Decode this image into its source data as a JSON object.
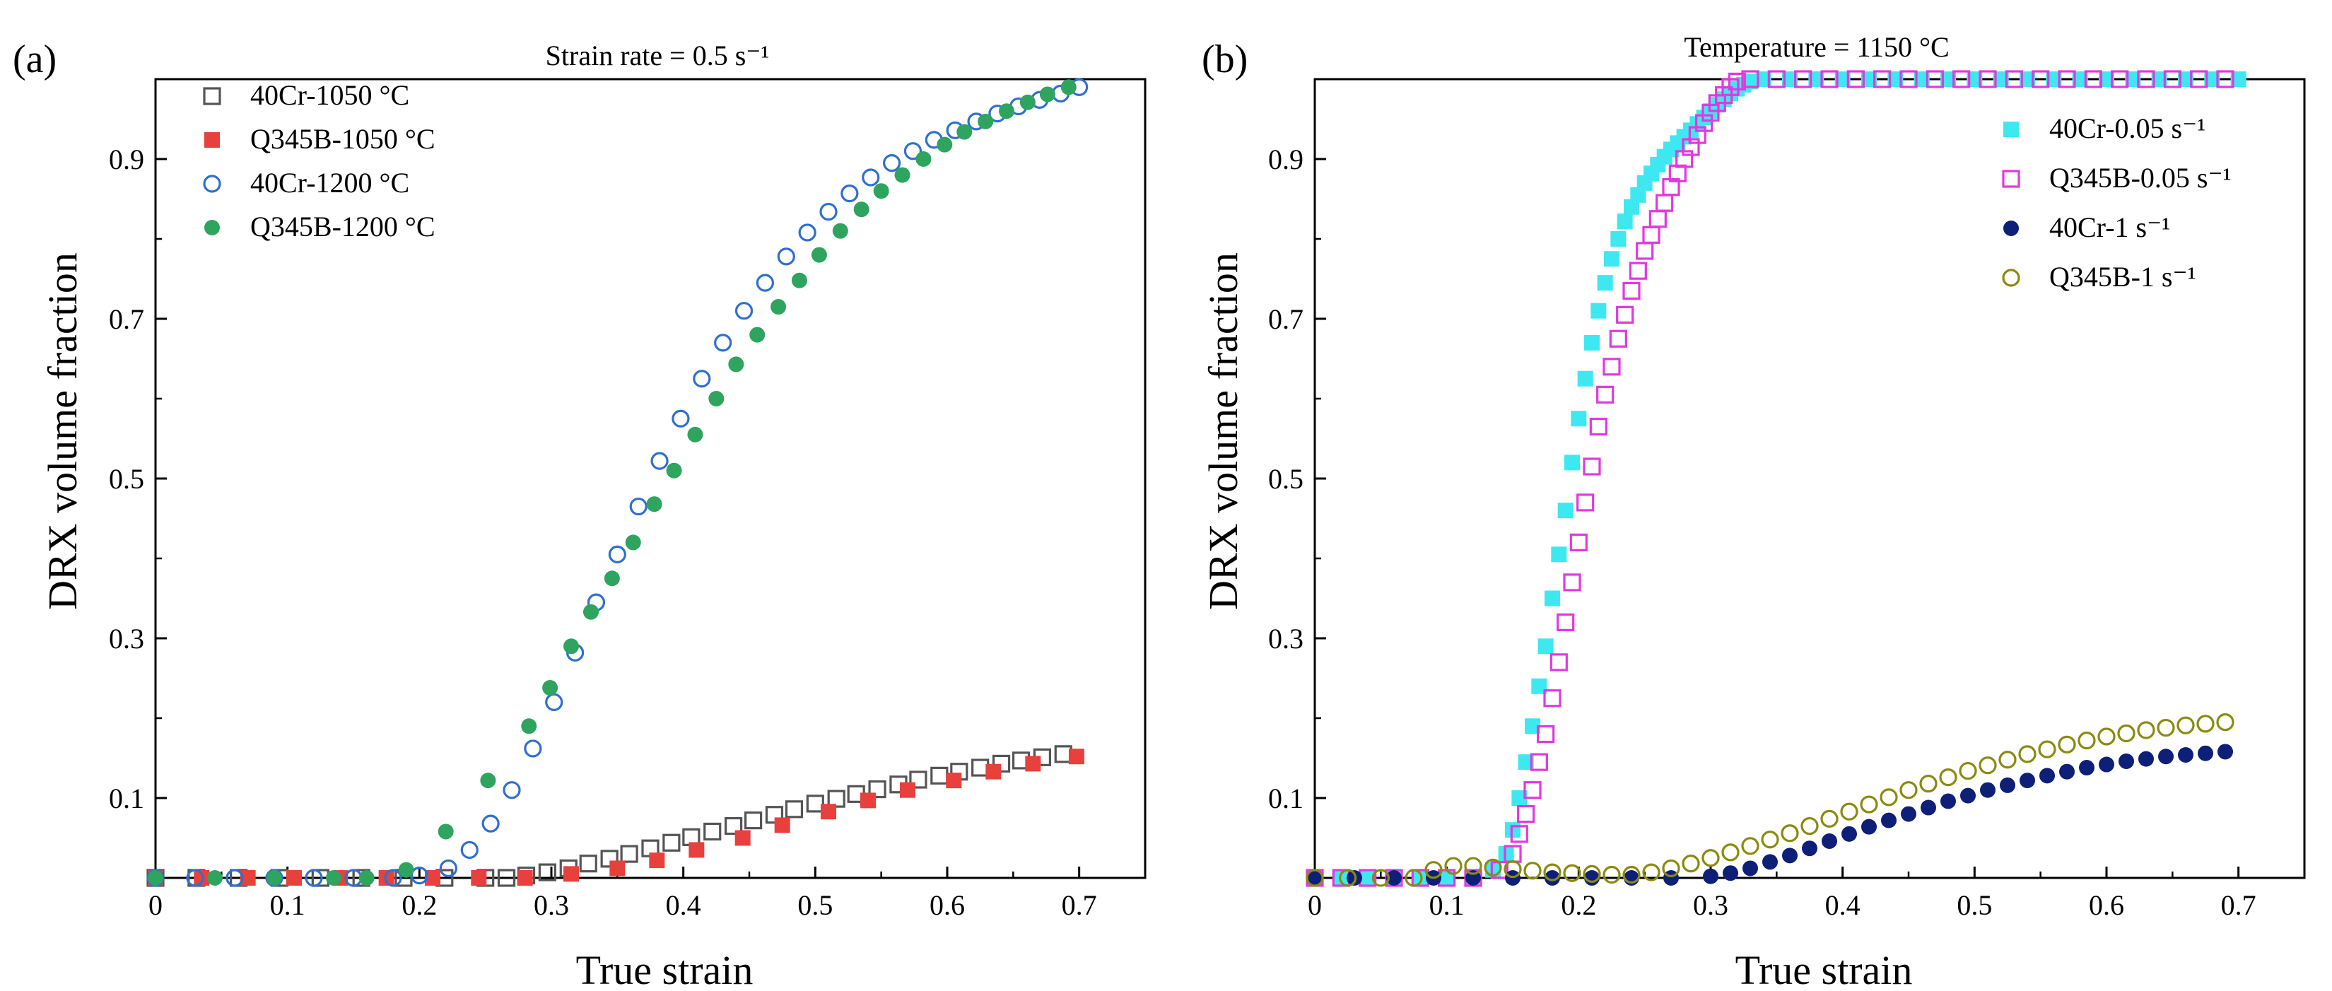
{
  "colors": {
    "axis": "#000000",
    "gray": "#555555",
    "red": "#e8403c",
    "blue": "#2f6fd0",
    "green": "#2ea45e",
    "cyan": "#3ee8f0",
    "magenta": "#e238e0",
    "navy": "#0e1f78",
    "olive": "#8a8a10"
  },
  "chart_data": [
    {
      "panel_label": "(a)",
      "type": "scatter",
      "title": "Strain rate = 0.5 s⁻¹",
      "xlabel": "True strain",
      "ylabel": "DRX volume fraction",
      "xlim": [
        0,
        0.75
      ],
      "ylim": [
        0,
        1.0
      ],
      "xticks": [
        0,
        0.1,
        0.2,
        0.3,
        0.4,
        0.5,
        0.6,
        0.7
      ],
      "xtick_labels": [
        "0",
        "0.1",
        "0.2",
        "0.3",
        "0.4",
        "0.5",
        "0.6",
        "0.7"
      ],
      "yticks": [
        0.1,
        0.3,
        0.5,
        0.7,
        0.9
      ],
      "ytick_labels": [
        "0.1",
        "0.3",
        "0.5",
        "0.7",
        "0.9"
      ],
      "legend_position": "top-left",
      "series": [
        {
          "name": "40Cr-1050 °C",
          "marker": "open-square",
          "color": "#555555",
          "x": [
            0.0,
            0.031,
            0.063,
            0.094,
            0.125,
            0.156,
            0.188,
            0.219,
            0.25,
            0.266,
            0.281,
            0.297,
            0.313,
            0.328,
            0.344,
            0.359,
            0.375,
            0.391,
            0.406,
            0.422,
            0.438,
            0.453,
            0.469,
            0.484,
            0.5,
            0.516,
            0.531,
            0.547,
            0.563,
            0.578,
            0.594,
            0.609,
            0.625,
            0.641,
            0.656,
            0.672,
            0.688
          ],
          "y": [
            0.0,
            0.0,
            0.0,
            0.0,
            0.0,
            0.0,
            0.0,
            0.0,
            0.0,
            0.0,
            0.003,
            0.007,
            0.012,
            0.018,
            0.024,
            0.03,
            0.037,
            0.044,
            0.051,
            0.058,
            0.065,
            0.072,
            0.079,
            0.086,
            0.093,
            0.099,
            0.105,
            0.111,
            0.117,
            0.123,
            0.128,
            0.133,
            0.138,
            0.143,
            0.147,
            0.151,
            0.155
          ]
        },
        {
          "name": "Q345B-1050 °C",
          "marker": "filled-square",
          "color": "#e8403c",
          "x": [
            0.0,
            0.035,
            0.07,
            0.105,
            0.14,
            0.175,
            0.21,
            0.245,
            0.28,
            0.315,
            0.35,
            0.38,
            0.41,
            0.445,
            0.475,
            0.51,
            0.54,
            0.57,
            0.605,
            0.635,
            0.665,
            0.698
          ],
          "y": [
            0.0,
            0.0,
            0.0,
            0.0,
            0.0,
            0.0,
            0.0,
            0.0,
            0.0,
            0.005,
            0.012,
            0.022,
            0.035,
            0.05,
            0.066,
            0.083,
            0.097,
            0.11,
            0.122,
            0.133,
            0.143,
            0.152
          ]
        },
        {
          "name": "40Cr-1200 °C",
          "marker": "open-circle",
          "color": "#2f6fd0",
          "x": [
            0.0,
            0.03,
            0.06,
            0.09,
            0.12,
            0.15,
            0.18,
            0.2,
            0.222,
            0.238,
            0.254,
            0.27,
            0.286,
            0.302,
            0.318,
            0.334,
            0.35,
            0.366,
            0.382,
            0.398,
            0.414,
            0.43,
            0.446,
            0.462,
            0.478,
            0.494,
            0.51,
            0.526,
            0.542,
            0.558,
            0.574,
            0.59,
            0.606,
            0.622,
            0.638,
            0.654,
            0.67,
            0.686,
            0.7
          ],
          "y": [
            0.0,
            0.0,
            0.0,
            0.0,
            0.0,
            0.0,
            0.0,
            0.003,
            0.012,
            0.035,
            0.068,
            0.11,
            0.162,
            0.22,
            0.282,
            0.345,
            0.405,
            0.465,
            0.522,
            0.575,
            0.625,
            0.67,
            0.71,
            0.745,
            0.778,
            0.808,
            0.834,
            0.857,
            0.877,
            0.895,
            0.91,
            0.924,
            0.936,
            0.947,
            0.957,
            0.966,
            0.974,
            0.982,
            0.99
          ]
        },
        {
          "name": "Q345B-1200 °C",
          "marker": "filled-circle",
          "color": "#2ea45e",
          "x": [
            0.0,
            0.045,
            0.09,
            0.135,
            0.16,
            0.19,
            0.22,
            0.252,
            0.283,
            0.299,
            0.315,
            0.33,
            0.346,
            0.362,
            0.378,
            0.393,
            0.409,
            0.425,
            0.44,
            0.456,
            0.472,
            0.488,
            0.503,
            0.519,
            0.535,
            0.55,
            0.566,
            0.582,
            0.598,
            0.613,
            0.629,
            0.645,
            0.661,
            0.676,
            0.692
          ],
          "y": [
            0.0,
            0.0,
            0.0,
            0.0,
            0.0,
            0.01,
            0.058,
            0.122,
            0.19,
            0.238,
            0.29,
            0.333,
            0.375,
            0.42,
            0.468,
            0.51,
            0.555,
            0.6,
            0.643,
            0.68,
            0.715,
            0.748,
            0.78,
            0.81,
            0.837,
            0.86,
            0.88,
            0.9,
            0.918,
            0.934,
            0.947,
            0.96,
            0.971,
            0.981,
            0.99
          ]
        }
      ]
    },
    {
      "panel_label": "(b)",
      "type": "scatter",
      "title": "Temperature = 1150 °C",
      "xlabel": "True strain",
      "ylabel": "DRX volume fraction",
      "xlim": [
        0,
        0.75
      ],
      "ylim": [
        0,
        1.0
      ],
      "xticks": [
        0,
        0.1,
        0.2,
        0.3,
        0.4,
        0.5,
        0.6,
        0.7
      ],
      "xtick_labels": [
        "0",
        "0.1",
        "0.2",
        "0.3",
        "0.4",
        "0.5",
        "0.6",
        "0.7"
      ],
      "yticks": [
        0.1,
        0.3,
        0.5,
        0.7,
        0.9
      ],
      "ytick_labels": [
        "0.1",
        "0.3",
        "0.5",
        "0.7",
        "0.9"
      ],
      "legend_position": "top-right",
      "series": [
        {
          "name": "40Cr-0.05 s⁻¹",
          "marker": "filled-square",
          "color": "#3ee8f0",
          "x": [
            0.0,
            0.02,
            0.04,
            0.06,
            0.08,
            0.1,
            0.12,
            0.135,
            0.145,
            0.15,
            0.155,
            0.16,
            0.165,
            0.17,
            0.175,
            0.18,
            0.185,
            0.19,
            0.195,
            0.2,
            0.205,
            0.21,
            0.215,
            0.22,
            0.225,
            0.23,
            0.235,
            0.24,
            0.245,
            0.25,
            0.255,
            0.26,
            0.265,
            0.27,
            0.275,
            0.28,
            0.285,
            0.29,
            0.295,
            0.3,
            0.305,
            0.31,
            0.315,
            0.32,
            0.325,
            0.33,
            0.34,
            0.36,
            0.38,
            0.4,
            0.42,
            0.44,
            0.46,
            0.48,
            0.5,
            0.52,
            0.54,
            0.56,
            0.58,
            0.6,
            0.62,
            0.64,
            0.66,
            0.68,
            0.7
          ],
          "y": [
            0.0,
            0.0,
            0.0,
            0.0,
            0.0,
            0.0,
            0.0,
            0.01,
            0.03,
            0.06,
            0.1,
            0.145,
            0.19,
            0.24,
            0.29,
            0.35,
            0.405,
            0.46,
            0.52,
            0.575,
            0.625,
            0.67,
            0.71,
            0.745,
            0.775,
            0.8,
            0.822,
            0.84,
            0.855,
            0.87,
            0.882,
            0.893,
            0.903,
            0.912,
            0.92,
            0.928,
            0.936,
            0.944,
            0.952,
            0.96,
            0.968,
            0.975,
            0.982,
            0.988,
            0.993,
            0.997,
            1.0,
            1.0,
            1.0,
            1.0,
            1.0,
            1.0,
            1.0,
            1.0,
            1.0,
            1.0,
            1.0,
            1.0,
            1.0,
            1.0,
            1.0,
            1.0,
            1.0,
            1.0,
            1.0
          ]
        },
        {
          "name": "Q345B-0.05 s⁻¹",
          "marker": "open-square",
          "color": "#e238e0",
          "x": [
            0.0,
            0.02,
            0.04,
            0.06,
            0.08,
            0.1,
            0.12,
            0.14,
            0.15,
            0.155,
            0.16,
            0.165,
            0.17,
            0.175,
            0.18,
            0.185,
            0.19,
            0.195,
            0.2,
            0.205,
            0.21,
            0.215,
            0.22,
            0.225,
            0.23,
            0.235,
            0.24,
            0.245,
            0.25,
            0.255,
            0.26,
            0.265,
            0.27,
            0.275,
            0.28,
            0.285,
            0.29,
            0.295,
            0.3,
            0.305,
            0.31,
            0.315,
            0.32,
            0.33,
            0.35,
            0.37,
            0.39,
            0.41,
            0.43,
            0.45,
            0.47,
            0.49,
            0.51,
            0.53,
            0.55,
            0.57,
            0.59,
            0.61,
            0.63,
            0.65,
            0.67,
            0.69
          ],
          "y": [
            0.0,
            0.0,
            0.0,
            0.0,
            0.0,
            0.0,
            0.0,
            0.01,
            0.03,
            0.055,
            0.08,
            0.11,
            0.145,
            0.18,
            0.225,
            0.27,
            0.32,
            0.37,
            0.42,
            0.47,
            0.515,
            0.565,
            0.605,
            0.64,
            0.675,
            0.705,
            0.735,
            0.76,
            0.785,
            0.805,
            0.825,
            0.845,
            0.865,
            0.882,
            0.9,
            0.915,
            0.93,
            0.945,
            0.958,
            0.97,
            0.98,
            0.99,
            0.997,
            1.0,
            1.0,
            1.0,
            1.0,
            1.0,
            1.0,
            1.0,
            1.0,
            1.0,
            1.0,
            1.0,
            1.0,
            1.0,
            1.0,
            1.0,
            1.0,
            1.0,
            1.0,
            1.0
          ]
        },
        {
          "name": "40Cr-1 s⁻¹",
          "marker": "filled-circle",
          "color": "#0e1f78",
          "x": [
            0.0,
            0.03,
            0.06,
            0.09,
            0.12,
            0.15,
            0.18,
            0.21,
            0.24,
            0.27,
            0.3,
            0.315,
            0.33,
            0.345,
            0.36,
            0.375,
            0.39,
            0.405,
            0.42,
            0.435,
            0.45,
            0.465,
            0.48,
            0.495,
            0.51,
            0.525,
            0.54,
            0.555,
            0.57,
            0.585,
            0.6,
            0.615,
            0.63,
            0.645,
            0.66,
            0.675,
            0.69
          ],
          "y": [
            0.0,
            0.0,
            0.0,
            0.0,
            0.0,
            0.0,
            0.0,
            0.0,
            0.0,
            0.0,
            0.002,
            0.006,
            0.012,
            0.02,
            0.028,
            0.037,
            0.046,
            0.055,
            0.064,
            0.072,
            0.08,
            0.088,
            0.096,
            0.103,
            0.11,
            0.116,
            0.122,
            0.128,
            0.133,
            0.138,
            0.142,
            0.146,
            0.149,
            0.152,
            0.154,
            0.156,
            0.158
          ]
        },
        {
          "name": "Q345B-1 s⁻¹",
          "marker": "open-circle",
          "color": "#8a8a10",
          "x": [
            0.0,
            0.025,
            0.05,
            0.075,
            0.09,
            0.105,
            0.12,
            0.135,
            0.15,
            0.165,
            0.18,
            0.195,
            0.21,
            0.225,
            0.24,
            0.255,
            0.27,
            0.285,
            0.3,
            0.315,
            0.33,
            0.345,
            0.36,
            0.375,
            0.39,
            0.405,
            0.42,
            0.435,
            0.45,
            0.465,
            0.48,
            0.495,
            0.51,
            0.525,
            0.54,
            0.555,
            0.57,
            0.585,
            0.6,
            0.615,
            0.63,
            0.645,
            0.66,
            0.675,
            0.69
          ],
          "y": [
            0.0,
            0.0,
            0.0,
            0.0,
            0.01,
            0.015,
            0.015,
            0.013,
            0.011,
            0.009,
            0.007,
            0.006,
            0.005,
            0.004,
            0.004,
            0.007,
            0.012,
            0.018,
            0.025,
            0.032,
            0.04,
            0.048,
            0.056,
            0.065,
            0.074,
            0.083,
            0.092,
            0.101,
            0.11,
            0.118,
            0.126,
            0.134,
            0.141,
            0.148,
            0.155,
            0.161,
            0.167,
            0.172,
            0.177,
            0.181,
            0.185,
            0.188,
            0.191,
            0.193,
            0.195
          ]
        }
      ]
    }
  ]
}
